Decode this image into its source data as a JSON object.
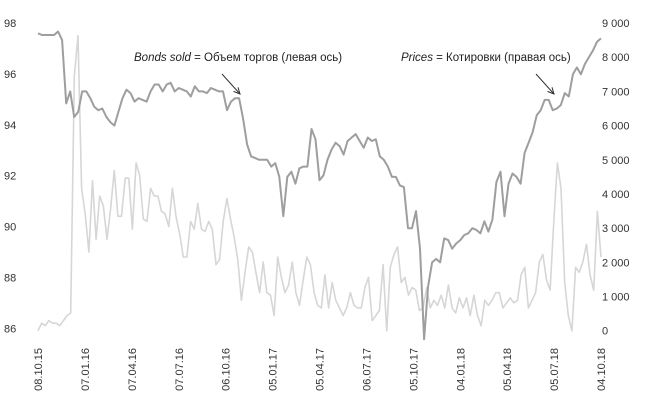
{
  "chart_data": {
    "type": "line",
    "x_ticks": [
      "08.10.15",
      "07.01.16",
      "07.04.16",
      "07.07.16",
      "06.10.16",
      "05.01.17",
      "05.04.17",
      "06.07.17",
      "05.10.17",
      "04.01.18",
      "05.04.18",
      "05.07.18",
      "04.10.18"
    ],
    "left_axis": {
      "ylim": [
        85.5,
        98
      ],
      "ticks": [
        86,
        88,
        90,
        92,
        94,
        96,
        98
      ]
    },
    "right_axis": {
      "ylim": [
        -300,
        9000
      ],
      "ticks": [
        0,
        1000,
        2000,
        3000,
        4000,
        5000,
        6000,
        7000,
        8000,
        9000
      ],
      "tick_labels": [
        "0",
        "1 000",
        "2 000",
        "3 000",
        "4 000",
        "5 000",
        "6 000",
        "7 000",
        "8 000",
        "9 000"
      ]
    },
    "grid": false,
    "series": [
      {
        "name": "Prices",
        "axis": "right",
        "color": "#9e9e9e",
        "values": [
          8700,
          8650,
          8650,
          8650,
          8650,
          8750,
          8500,
          6650,
          7000,
          6250,
          6400,
          7000,
          7000,
          6800,
          6550,
          6450,
          6500,
          6250,
          6100,
          6000,
          6400,
          6800,
          7050,
          6950,
          6700,
          6800,
          6750,
          6700,
          7000,
          7200,
          7200,
          7000,
          7200,
          7250,
          7000,
          7100,
          7050,
          7000,
          6850,
          7150,
          7000,
          7000,
          6950,
          7100,
          7050,
          7000,
          7000,
          6450,
          6700,
          6800,
          6800,
          6200,
          5450,
          5100,
          5050,
          5000,
          5000,
          5000,
          4800,
          4900,
          4500,
          3350,
          4500,
          4650,
          4300,
          4750,
          4800,
          4800,
          5900,
          5600,
          4400,
          4550,
          5000,
          5300,
          5500,
          5400,
          5150,
          5550,
          5650,
          5750,
          5550,
          5350,
          5650,
          5550,
          5600,
          5100,
          5000,
          4800,
          4500,
          4500,
          4250,
          4200,
          3000,
          3000,
          3500,
          2400,
          -250,
          1300,
          2000,
          2100,
          2000,
          2700,
          2650,
          2400,
          2550,
          2650,
          2800,
          2850,
          3000,
          2950,
          2850,
          3200,
          2900,
          3250,
          4350,
          4650,
          3350,
          4300,
          4600,
          4500,
          4300,
          5200,
          5500,
          5800,
          6300,
          6450,
          6750,
          6750,
          6450,
          6500,
          6600,
          6950,
          6850,
          7500,
          7700,
          7500,
          7800,
          8000,
          8200,
          8450,
          8550
        ],
        "x_ticks_values": [
          "08.10.15",
          "07.01.16",
          "07.04.16",
          "07.07.16",
          "06.10.16",
          "05.01.17",
          "05.04.17",
          "06.07.17",
          "05.10.17",
          "04.01.18",
          "05.04.18",
          "05.07.18",
          "04.10.18"
        ]
      },
      {
        "name": "Bonds sold",
        "axis": "left",
        "color": "#d6d6d6",
        "values": [
          85.9,
          86.2,
          86.1,
          86.3,
          86.2,
          86.2,
          86.1,
          86.3,
          86.5,
          86.6,
          95.9,
          97.5,
          91.5,
          90.5,
          89.0,
          91.8,
          89.5,
          91.2,
          90.8,
          89.5,
          90.7,
          92.2,
          90.4,
          90.4,
          91.9,
          91.9,
          89.9,
          92.5,
          92.0,
          90.3,
          90.2,
          91.5,
          91.2,
          91.2,
          90.6,
          90.5,
          90.0,
          91.5,
          90.4,
          89.7,
          88.8,
          88.8,
          90.2,
          89.9,
          90.9,
          89.9,
          89.8,
          90.2,
          89.9,
          88.5,
          88.7,
          90.2,
          91.1,
          90.3,
          89.6,
          88.7,
          87.1,
          88.2,
          89.2,
          89.0,
          88.2,
          87.4,
          88.6,
          87.4,
          87.3,
          86.5,
          88.8,
          88.0,
          87.4,
          87.7,
          88.6,
          87.4,
          86.9,
          87.9,
          88.8,
          88.5,
          87.4,
          86.9,
          86.8,
          88.1,
          86.8,
          87.8,
          87.1,
          86.8,
          86.5,
          86.8,
          87.4,
          86.9,
          86.8,
          86.8,
          87.6,
          88.0,
          86.3,
          86.5,
          86.7,
          88.5,
          85.9,
          88.4,
          88.9,
          89.2,
          87.8,
          88.0,
          87.3,
          87.6,
          87.5,
          86.7,
          86.8,
          87.6,
          86.8,
          87.1,
          86.9,
          87.3,
          86.8,
          87.7,
          86.8,
          86.6,
          87.2,
          86.8,
          87.2,
          86.5,
          87.3,
          86.5,
          86.1,
          87.1,
          86.9,
          87.1,
          87.4,
          87.4,
          86.8,
          87.0,
          87.2,
          87.0,
          87.1,
          88.1,
          88.4,
          86.8,
          87.1,
          87.4,
          88.6,
          88.9,
          87.9,
          87.5,
          90.2,
          92.5,
          91.5,
          87.8,
          86.5,
          85.9,
          88.4,
          88.2,
          88.6,
          89.3,
          88.1,
          87.5,
          90.6,
          88.8
        ]
      }
    ],
    "annotations": [
      {
        "em": "Bonds sold",
        "text": " = Объем торгов (левая ось)"
      },
      {
        "em": "Prices",
        "text": " = Котировки (правая ось)"
      }
    ]
  }
}
